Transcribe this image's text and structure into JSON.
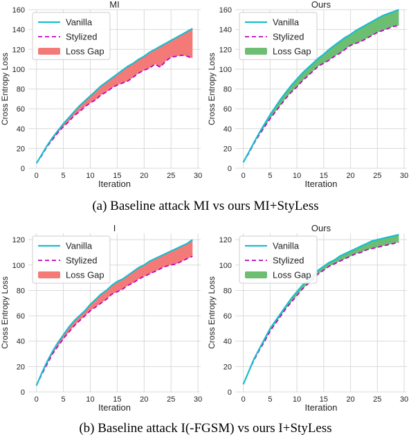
{
  "captions": {
    "a": "(a) Baseline attack MI vs ours MI+StyLess",
    "b": "(b) Baseline attack I(-FGSM) vs ours I+StyLess"
  },
  "legend_labels": [
    "Vanilla",
    "Stylized",
    "Loss Gap"
  ],
  "colors": {
    "vanilla": "#17becf",
    "stylized": "#bf00bf",
    "gap_baseline": "#f47a78",
    "gap_ours": "#6dbd73",
    "grid": "#d9d9d9",
    "text": "#222222"
  },
  "chart_data": [
    {
      "type": "area",
      "title": "MI",
      "xlabel": "Iteration",
      "ylabel": "Cross Entropy Loss",
      "xlim": [
        -1.5,
        30.5
      ],
      "ylim": [
        0,
        160
      ],
      "xticks": [
        0,
        5,
        10,
        15,
        20,
        25,
        30
      ],
      "yticks": [
        0,
        20,
        40,
        60,
        80,
        100,
        120,
        140,
        160
      ],
      "grid": true,
      "legend": "top-left",
      "gap_color_key": "gap_baseline",
      "series": [
        {
          "name": "Vanilla",
          "style": "solid",
          "x": [
            0,
            1,
            2,
            3,
            4,
            5,
            6,
            7,
            8,
            9,
            10,
            11,
            12,
            13,
            14,
            15,
            16,
            17,
            18,
            19,
            20,
            21,
            22,
            23,
            24,
            25,
            26,
            27,
            28,
            29
          ],
          "y": [
            5,
            14,
            23,
            31,
            38,
            45,
            51,
            57,
            63,
            68,
            73,
            78,
            83,
            87,
            91,
            95,
            99,
            103,
            106,
            110,
            113,
            117,
            120,
            123,
            126,
            129,
            132,
            135,
            138,
            141
          ]
        },
        {
          "name": "Stylized",
          "style": "dashed",
          "x": [
            0,
            1,
            2,
            3,
            4,
            5,
            6,
            7,
            8,
            9,
            10,
            11,
            12,
            13,
            14,
            15,
            16,
            17,
            18,
            19,
            20,
            21,
            22,
            23,
            24,
            25,
            26,
            27,
            28,
            29
          ],
          "y": [
            5,
            13,
            22,
            29,
            36,
            42,
            47,
            53,
            57,
            62,
            66,
            69,
            74,
            77,
            81,
            84,
            86,
            88,
            92,
            96,
            99,
            101,
            105,
            102,
            108,
            112,
            113,
            114,
            113,
            111
          ]
        }
      ]
    },
    {
      "type": "area",
      "title": "Ours",
      "xlabel": "Iteration",
      "ylabel": "Cross Entropy Loss",
      "xlim": [
        -1.5,
        30.5
      ],
      "ylim": [
        0,
        160
      ],
      "xticks": [
        0,
        5,
        10,
        15,
        20,
        25,
        30
      ],
      "yticks": [
        0,
        20,
        40,
        60,
        80,
        100,
        120,
        140,
        160
      ],
      "grid": true,
      "legend": "top-left",
      "gap_color_key": "gap_ours",
      "series": [
        {
          "name": "Vanilla",
          "style": "solid",
          "x": [
            0,
            1,
            2,
            3,
            4,
            5,
            6,
            7,
            8,
            9,
            10,
            11,
            12,
            13,
            14,
            15,
            16,
            17,
            18,
            19,
            20,
            21,
            22,
            23,
            24,
            25,
            26,
            27,
            28,
            29
          ],
          "y": [
            6,
            16,
            26,
            36,
            45,
            54,
            62,
            70,
            77,
            84,
            90,
            96,
            101,
            106,
            111,
            115,
            120,
            124,
            128,
            132,
            135,
            139,
            142,
            145,
            148,
            151,
            154,
            156,
            158,
            160
          ]
        },
        {
          "name": "Stylized",
          "style": "dashed",
          "x": [
            0,
            1,
            2,
            3,
            4,
            5,
            6,
            7,
            8,
            9,
            10,
            11,
            12,
            13,
            14,
            15,
            16,
            17,
            18,
            19,
            20,
            21,
            22,
            23,
            24,
            25,
            26,
            27,
            28,
            29
          ],
          "y": [
            6,
            15,
            25,
            34,
            42,
            50,
            57,
            64,
            71,
            77,
            82,
            88,
            93,
            98,
            103,
            106,
            109,
            113,
            116,
            120,
            124,
            126,
            128,
            131,
            134,
            137,
            139,
            141,
            143,
            144
          ]
        }
      ]
    },
    {
      "type": "area",
      "title": "I",
      "xlabel": "Iteration",
      "ylabel": "Cross Entropy Loss",
      "xlim": [
        -1.5,
        30.5
      ],
      "ylim": [
        0,
        125
      ],
      "xticks": [
        0,
        5,
        10,
        15,
        20,
        25,
        30
      ],
      "yticks": [
        0,
        20,
        40,
        60,
        80,
        100,
        120
      ],
      "grid": true,
      "legend": "top-left",
      "gap_color_key": "gap_baseline",
      "series": [
        {
          "name": "Vanilla",
          "style": "solid",
          "x": [
            0,
            1,
            2,
            3,
            4,
            5,
            6,
            7,
            8,
            9,
            10,
            11,
            12,
            13,
            14,
            15,
            16,
            17,
            18,
            19,
            20,
            21,
            22,
            23,
            24,
            25,
            26,
            27,
            28,
            29
          ],
          "y": [
            5,
            15,
            24,
            32,
            39,
            45,
            51,
            56,
            60,
            64,
            69,
            73,
            77,
            80,
            84,
            87,
            89,
            92,
            95,
            98,
            100,
            103,
            105,
            107,
            109,
            111,
            113,
            115,
            117,
            120
          ]
        },
        {
          "name": "Stylized",
          "style": "dashed",
          "x": [
            0,
            1,
            2,
            3,
            4,
            5,
            6,
            7,
            8,
            9,
            10,
            11,
            12,
            13,
            14,
            15,
            16,
            17,
            18,
            19,
            20,
            21,
            22,
            23,
            24,
            25,
            26,
            27,
            28,
            29
          ],
          "y": [
            5,
            14,
            22,
            30,
            36,
            42,
            47,
            52,
            56,
            60,
            64,
            67,
            70,
            73,
            77,
            79,
            81,
            84,
            86,
            89,
            91,
            93,
            95,
            97,
            99,
            100,
            101,
            103,
            105,
            107
          ]
        }
      ]
    },
    {
      "type": "area",
      "title": "Ours",
      "xlabel": "Iteration",
      "ylabel": "Cross Entropy Loss",
      "xlim": [
        -1.5,
        30.5
      ],
      "ylim": [
        0,
        125
      ],
      "xticks": [
        0,
        5,
        10,
        15,
        20,
        25,
        30
      ],
      "yticks": [
        0,
        20,
        40,
        60,
        80,
        100,
        120
      ],
      "grid": true,
      "legend": "top-left",
      "gap_color_key": "gap_ours",
      "series": [
        {
          "name": "Vanilla",
          "style": "solid",
          "x": [
            0,
            1,
            2,
            3,
            4,
            5,
            6,
            7,
            8,
            9,
            10,
            11,
            12,
            13,
            14,
            15,
            16,
            17,
            18,
            19,
            20,
            21,
            22,
            23,
            24,
            25,
            26,
            27,
            28,
            29
          ],
          "y": [
            6,
            16,
            26,
            34,
            42,
            50,
            56,
            62,
            68,
            74,
            79,
            84,
            88,
            92,
            96,
            99,
            102,
            104,
            107,
            109,
            111,
            113,
            115,
            117,
            119,
            120,
            121,
            122,
            123,
            124
          ]
        },
        {
          "name": "Stylized",
          "style": "dashed",
          "x": [
            0,
            1,
            2,
            3,
            4,
            5,
            6,
            7,
            8,
            9,
            10,
            11,
            12,
            13,
            14,
            15,
            16,
            17,
            18,
            19,
            20,
            21,
            22,
            23,
            24,
            25,
            26,
            27,
            28,
            29
          ],
          "y": [
            6,
            16,
            25,
            33,
            40,
            48,
            54,
            60,
            66,
            71,
            76,
            81,
            85,
            89,
            93,
            96,
            99,
            101,
            103,
            105,
            107,
            109,
            110,
            112,
            113,
            114,
            115,
            116,
            117,
            118
          ]
        }
      ]
    }
  ]
}
